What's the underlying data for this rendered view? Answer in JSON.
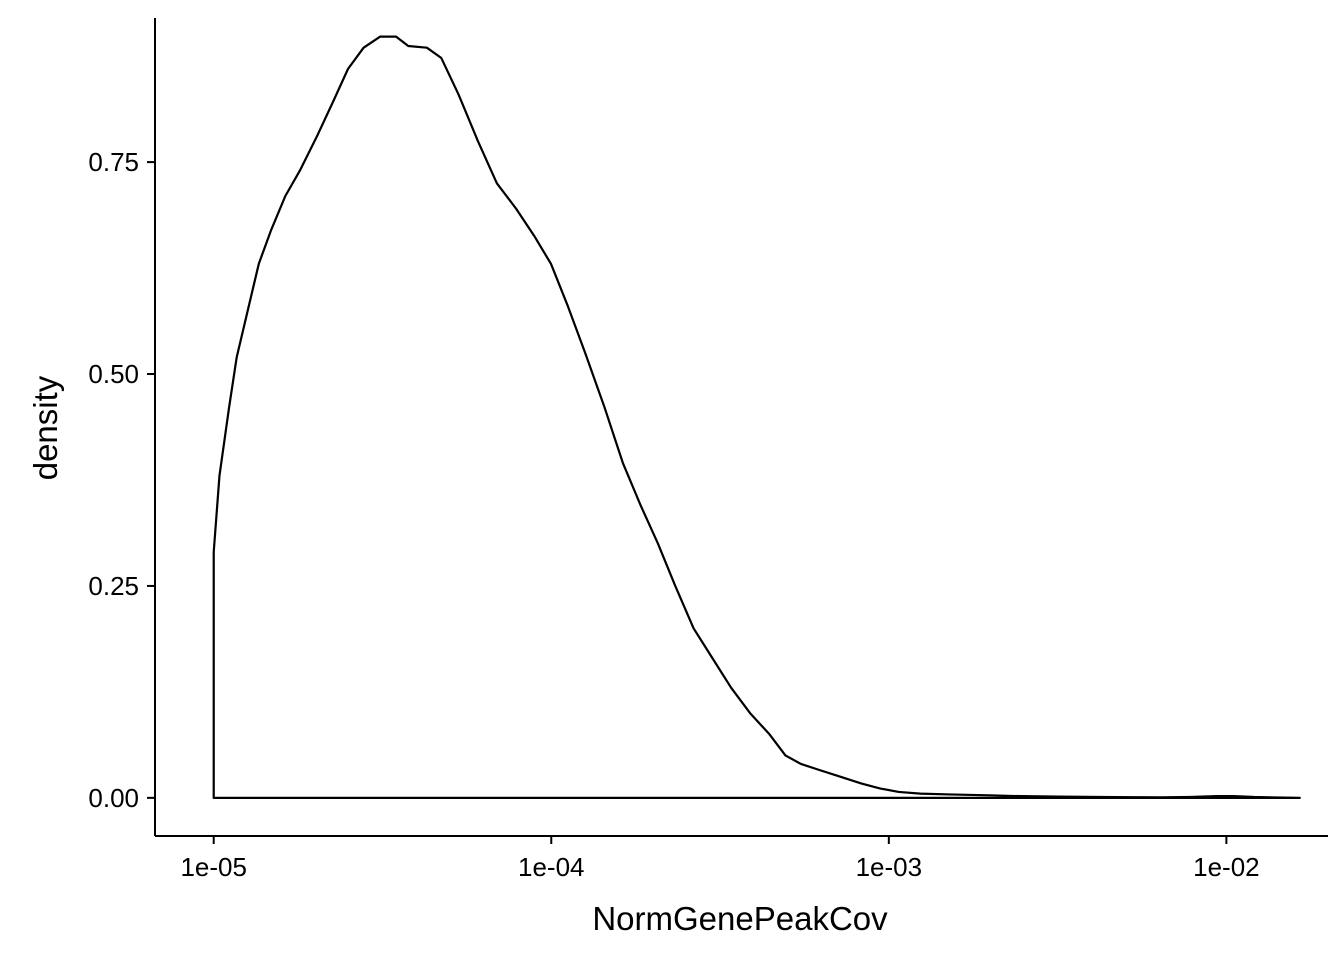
{
  "chart_data": {
    "type": "area",
    "xlabel": "NormGenePeakCov",
    "ylabel": "density",
    "x_scale": "log10",
    "xlim": [
      6.7e-06,
      0.02
    ],
    "ylim": [
      -0.045,
      0.92
    ],
    "x_ticks": [
      {
        "value": 1e-05,
        "label": "1e-05"
      },
      {
        "value": 0.0001,
        "label": "1e-04"
      },
      {
        "value": 0.001,
        "label": "1e-03"
      },
      {
        "value": 0.01,
        "label": "1e-02"
      }
    ],
    "y_ticks": [
      {
        "value": 0.0,
        "label": "0.00"
      },
      {
        "value": 0.25,
        "label": "0.25"
      },
      {
        "value": 0.5,
        "label": "0.50"
      },
      {
        "value": 0.75,
        "label": "0.75"
      }
    ],
    "grid": false,
    "legend": "none",
    "series": [
      {
        "x": [
          1e-05,
          1.04e-05,
          1.11e-05,
          1.17e-05,
          1.27e-05,
          1.36e-05,
          1.48e-05,
          1.63e-05,
          1.8e-05,
          2.02e-05,
          2.25e-05,
          2.5e-05,
          2.78e-05,
          3.11e-05,
          3.47e-05,
          3.77e-05,
          4.28e-05,
          4.72e-05,
          5.31e-05,
          6.06e-05,
          6.9e-05,
          7.87e-05,
          8.9e-05,
          9.98e-05,
          0.000112,
          0.000126,
          0.000144,
          0.000163,
          0.000184,
          0.000207,
          0.000233,
          0.000264,
          0.0003,
          0.000341,
          0.000388,
          0.000443,
          0.000494,
          0.000549,
          0.000621,
          0.000718,
          0.000828,
          0.000944,
          0.00107,
          0.00124,
          0.00151,
          0.00198,
          0.00247,
          0.00318,
          0.0042,
          0.00534,
          0.00636,
          0.00781,
          0.00935,
          0.0105,
          0.0121,
          0.0141,
          0.0165
        ],
        "y": [
          0.29,
          0.38,
          0.46,
          0.52,
          0.58,
          0.63,
          0.67,
          0.71,
          0.74,
          0.78,
          0.82,
          0.86,
          0.885,
          0.898,
          0.898,
          0.887,
          0.885,
          0.873,
          0.83,
          0.775,
          0.725,
          0.695,
          0.663,
          0.63,
          0.58,
          0.525,
          0.46,
          0.395,
          0.345,
          0.3,
          0.25,
          0.2,
          0.165,
          0.13,
          0.1,
          0.075,
          0.05,
          0.04,
          0.033,
          0.025,
          0.017,
          0.011,
          0.007,
          0.005,
          0.004,
          0.003,
          0.002,
          0.0015,
          0.001,
          0.0008,
          0.0006,
          0.001,
          0.002,
          0.002,
          0.001,
          0.0005,
          0.0
        ]
      }
    ]
  }
}
